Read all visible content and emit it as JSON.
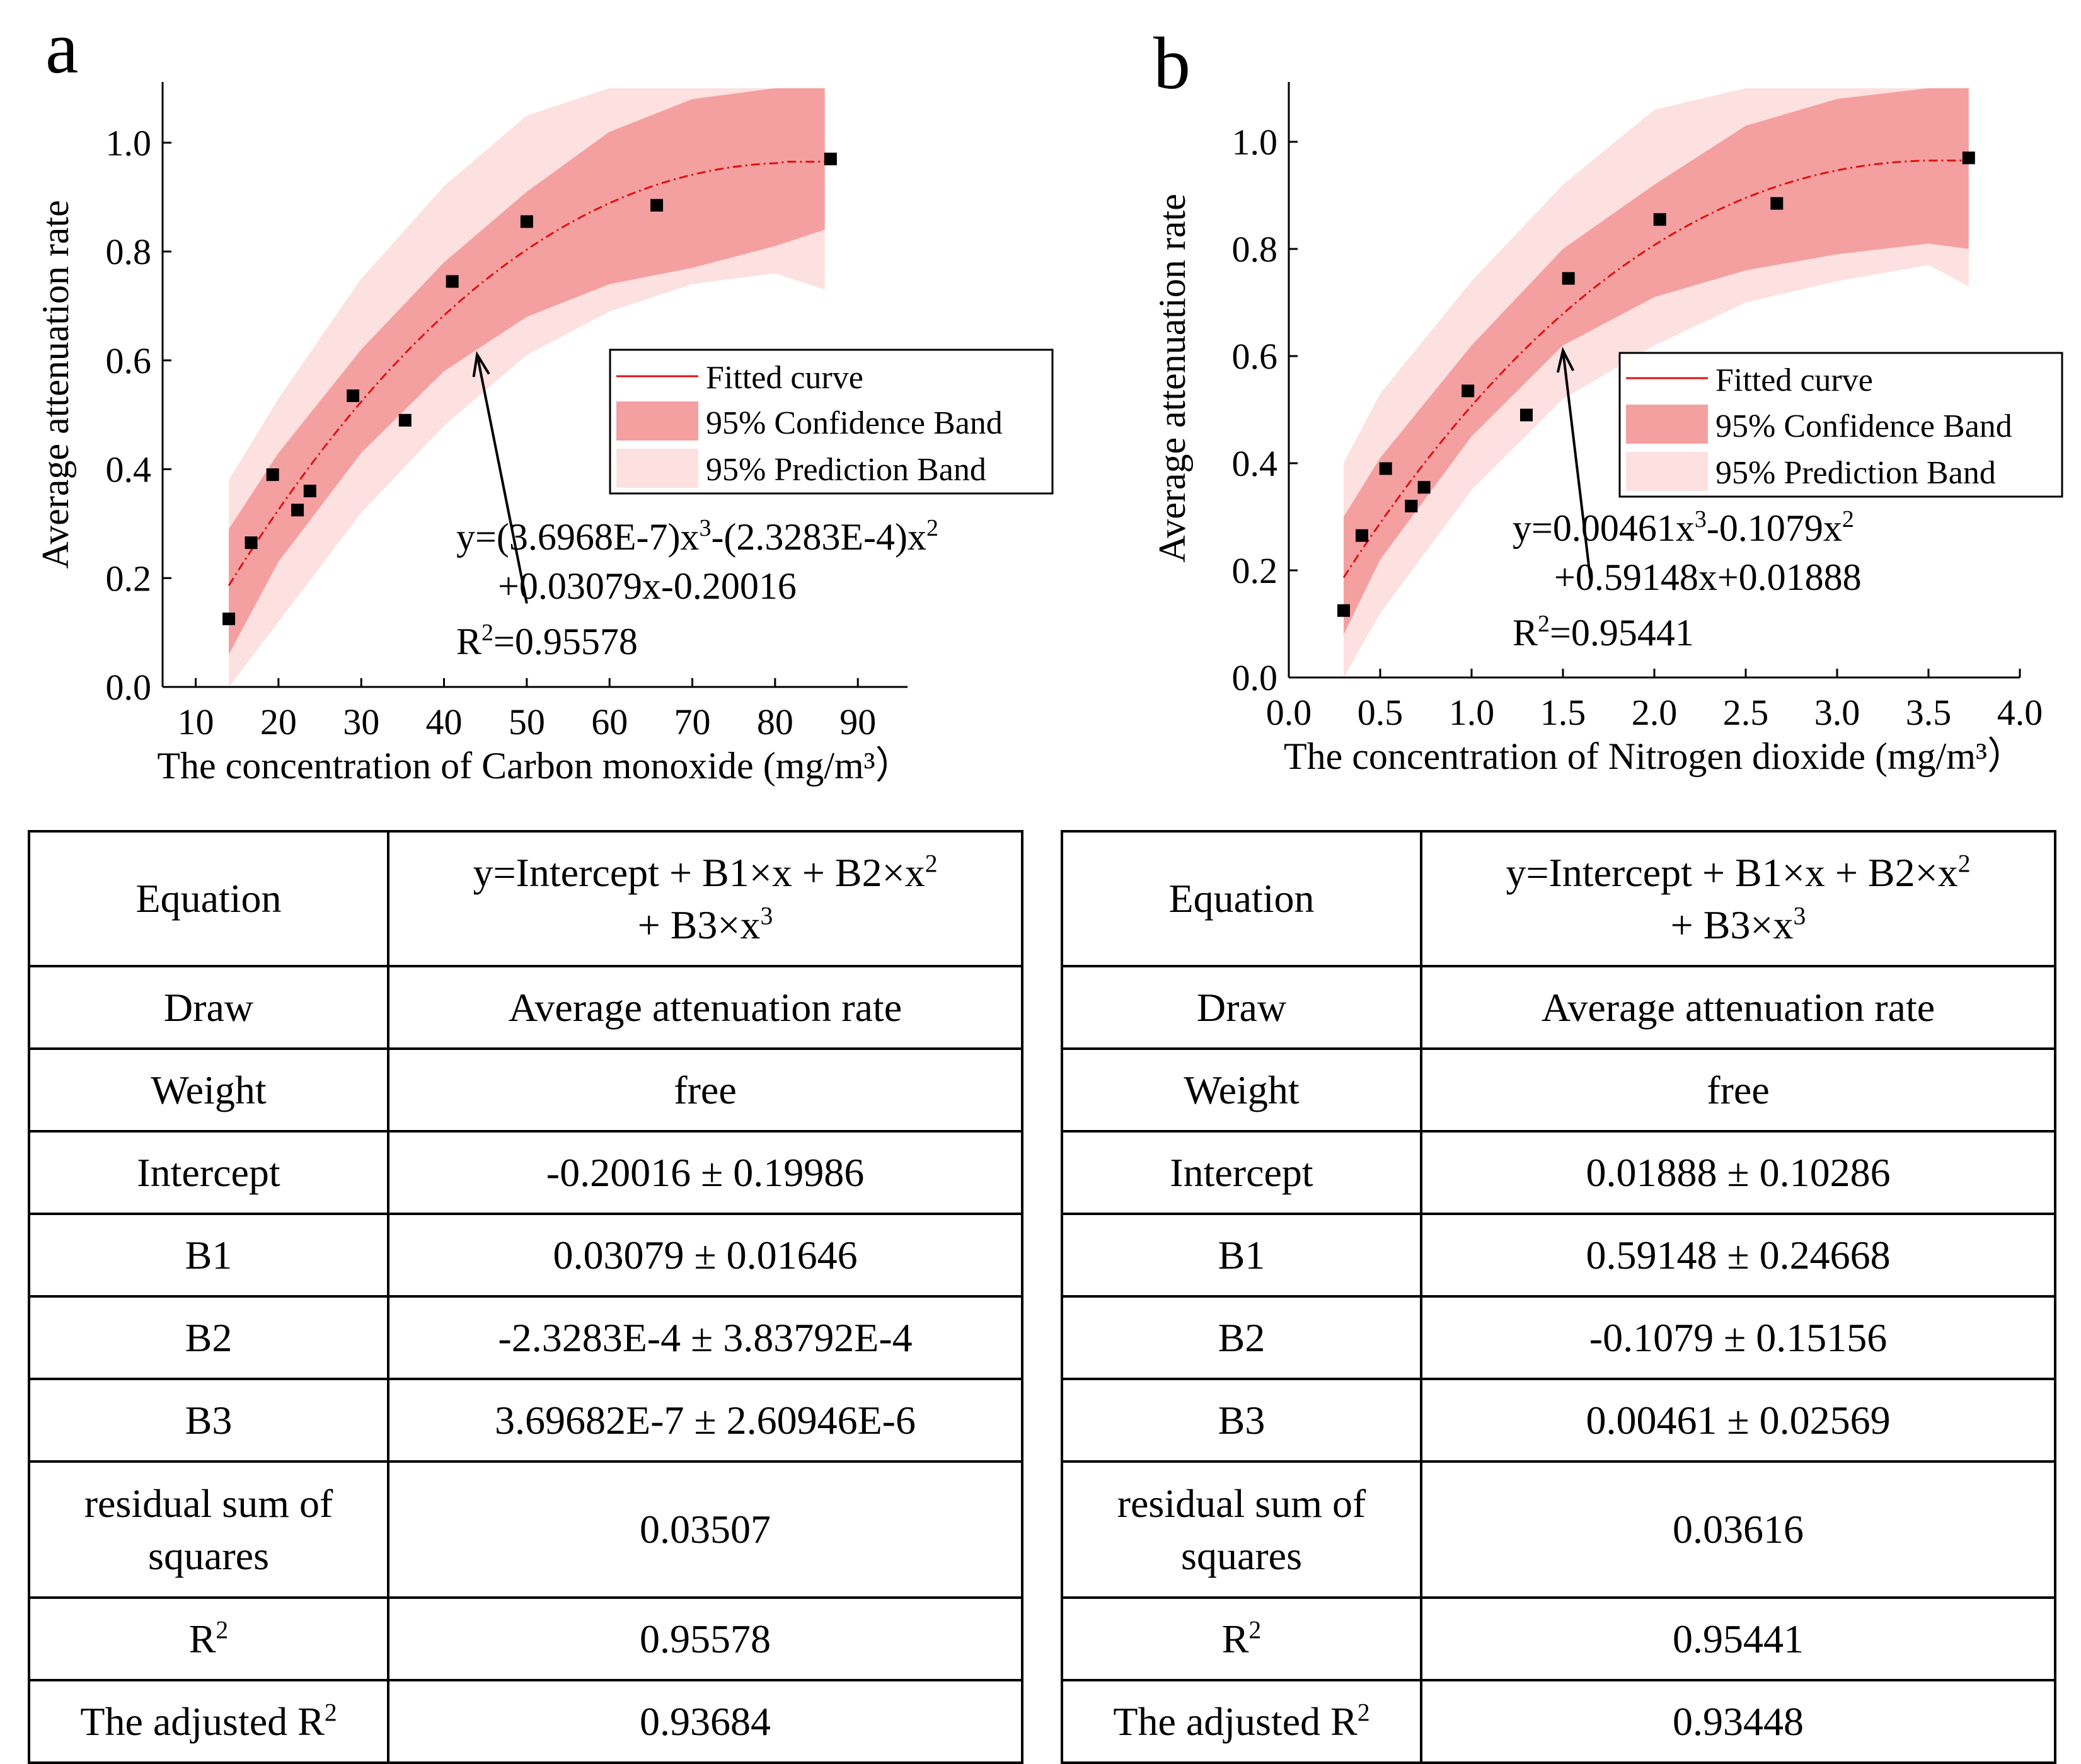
{
  "panels": [
    {
      "letter": "a",
      "equation_line1": "y=(3.6968E-7)x",
      "equation_line1b": "-(2.3283E-4)x",
      "equation_line2": "+0.03079x-0.20016",
      "equation_r2": "=0.95578",
      "legend": {
        "fit": "Fitted curve",
        "conf": "95% Confidence Band",
        "pred": "95% Prediction Band"
      },
      "table": {
        "rows": [
          {
            "label": "Equation",
            "value": "y=Intercept + B1×x + B2×x",
            "value2": "+ B3×x"
          },
          {
            "label": "Draw",
            "value": "Average attenuation rate"
          },
          {
            "label": "Weight",
            "value": "free"
          },
          {
            "label": "Intercept",
            "value": "-0.20016 ± 0.19986"
          },
          {
            "label": "B1",
            "value": "0.03079 ± 0.01646"
          },
          {
            "label": "B2",
            "value": "-2.3283E-4 ± 3.83792E-4"
          },
          {
            "label": "B3",
            "value": "3.69682E-7 ± 2.60946E-6"
          },
          {
            "label": "residual sum of squares",
            "value": "0.03507"
          },
          {
            "label": "R",
            "value": "0.95578"
          },
          {
            "label": "The adjusted R",
            "value": "0.93684"
          }
        ]
      }
    },
    {
      "letter": "b",
      "equation_line1": "y=0.00461x",
      "equation_line1b": "-0.1079x",
      "equation_line2": "+0.59148x+0.01888",
      "equation_r2": "=0.95441",
      "legend": {
        "fit": "Fitted curve",
        "conf": "95% Confidence Band",
        "pred": "95% Prediction Band"
      },
      "table": {
        "rows": [
          {
            "label": "Equation",
            "value": "y=Intercept + B1×x + B2×x",
            "value2": "+ B3×x"
          },
          {
            "label": "Draw",
            "value": "Average attenuation rate"
          },
          {
            "label": "Weight",
            "value": "free"
          },
          {
            "label": "Intercept",
            "value": "0.01888 ± 0.10286"
          },
          {
            "label": "B1",
            "value": "0.59148 ± 0.24668"
          },
          {
            "label": "B2",
            "value": "-0.1079 ± 0.15156"
          },
          {
            "label": "B3",
            "value": "0.00461 ± 0.02569"
          },
          {
            "label": "residual sum of squares",
            "value": "0.03616"
          },
          {
            "label": "R",
            "value": "0.95441"
          },
          {
            "label": "The adjusted R",
            "value": "0.93448"
          }
        ]
      }
    }
  ],
  "chart_data": [
    {
      "type": "scatter",
      "title": "a",
      "xlabel": "The concentration of Carbon monoxide (mg/m³）",
      "ylabel": "Average attenuation rate",
      "xlim": [
        6,
        96
      ],
      "ylim": [
        0,
        1.1
      ],
      "xticks": [
        10,
        20,
        30,
        40,
        50,
        60,
        70,
        80,
        90
      ],
      "yticks": [
        0.0,
        0.2,
        0.4,
        0.6,
        0.8,
        1.0
      ],
      "xtick_labels": [
        "10",
        "20",
        "30",
        "40",
        "50",
        "60",
        "70",
        "80",
        "90"
      ],
      "ytick_labels": [
        "0.0",
        "0.2",
        "0.4",
        "0.6",
        "0.8",
        "1.0"
      ],
      "series": [
        {
          "name": "Data",
          "x": [
            14.0,
            16.7,
            19.3,
            22.3,
            23.8,
            29.0,
            35.3,
            41.0,
            50.0,
            65.7,
            86.7
          ],
          "y": [
            0.125,
            0.265,
            0.39,
            0.325,
            0.36,
            0.535,
            0.49,
            0.745,
            0.855,
            0.885,
            0.97
          ]
        }
      ],
      "fit": {
        "type": "polynomial",
        "coefficients": [
          -0.20016,
          0.03079,
          -0.00023283,
          3.6968e-07
        ],
        "x_range": [
          14,
          86
        ],
        "flat_end": [
          81,
          86,
          0.965
        ]
      },
      "confidence_band": {
        "x": [
          14,
          20,
          30,
          40,
          50,
          60,
          70,
          80,
          86
        ],
        "lower": [
          0.06,
          0.23,
          0.43,
          0.58,
          0.68,
          0.74,
          0.77,
          0.81,
          0.84
        ],
        "upper": [
          0.29,
          0.43,
          0.62,
          0.78,
          0.91,
          1.02,
          1.08,
          1.1,
          1.1
        ]
      },
      "prediction_band": {
        "x": [
          14,
          20,
          30,
          40,
          50,
          60,
          70,
          80,
          86
        ],
        "lower": [
          -0.05,
          0.12,
          0.32,
          0.48,
          0.61,
          0.69,
          0.74,
          0.76,
          0.73
        ],
        "upper": [
          0.38,
          0.53,
          0.75,
          0.92,
          1.05,
          1.1,
          1.1,
          1.1,
          1.1
        ]
      },
      "annotation_arrow": {
        "from": [
          50,
          0.385
        ],
        "to": [
          44,
          0.62
        ]
      },
      "legend": [
        "Fitted curve",
        "95% Confidence Band",
        "95% Prediction Band"
      ],
      "legend_position": "center-right"
    },
    {
      "type": "scatter",
      "title": "b",
      "xlabel": "The concentration of Nitrogen dioxide (mg/m³）",
      "ylabel": "Average attenuation rate",
      "xlim": [
        0,
        4.0
      ],
      "ylim": [
        0,
        1.1
      ],
      "xticks": [
        0.0,
        0.5,
        1.0,
        1.5,
        2.0,
        2.5,
        3.0,
        3.5,
        4.0
      ],
      "yticks": [
        0.0,
        0.2,
        0.4,
        0.6,
        0.8,
        1.0
      ],
      "xtick_labels": [
        "0.0",
        "0.5",
        "1.0",
        "1.5",
        "2.0",
        "2.5",
        "3.0",
        "3.5",
        "4.0"
      ],
      "ytick_labels": [
        "0.0",
        "0.2",
        "0.4",
        "0.6",
        "0.8",
        "1.0"
      ],
      "series": [
        {
          "name": "Data",
          "x": [
            0.3,
            0.4,
            0.53,
            0.67,
            0.74,
            0.98,
            1.3,
            1.53,
            2.03,
            2.67,
            3.72
          ],
          "y": [
            0.125,
            0.265,
            0.39,
            0.32,
            0.355,
            0.535,
            0.49,
            0.745,
            0.855,
            0.885,
            0.97
          ]
        }
      ],
      "fit": {
        "type": "polynomial",
        "coefficients": [
          0.01888,
          0.59148,
          -0.1079,
          0.00461
        ],
        "x_range": [
          0.3,
          3.72
        ],
        "flat_end": [
          3.5,
          3.72,
          0.965
        ]
      },
      "confidence_band": {
        "x": [
          0.3,
          0.5,
          1.0,
          1.5,
          2.0,
          2.5,
          3.0,
          3.5,
          3.72
        ],
        "lower": [
          0.08,
          0.22,
          0.45,
          0.62,
          0.71,
          0.76,
          0.79,
          0.81,
          0.8
        ],
        "upper": [
          0.3,
          0.41,
          0.62,
          0.8,
          0.92,
          1.03,
          1.08,
          1.1,
          1.1
        ]
      },
      "prediction_band": {
        "x": [
          0.3,
          0.5,
          1.0,
          1.5,
          2.0,
          2.5,
          3.0,
          3.5,
          3.72
        ],
        "lower": [
          -0.02,
          0.12,
          0.35,
          0.52,
          0.62,
          0.7,
          0.74,
          0.77,
          0.73
        ],
        "upper": [
          0.4,
          0.53,
          0.74,
          0.92,
          1.06,
          1.1,
          1.1,
          1.1,
          1.1
        ]
      },
      "annotation_arrow": {
        "from": [
          1.65,
          0.42
        ],
        "to": [
          1.5,
          0.62
        ]
      },
      "legend": [
        "Fitted curve",
        "95% Confidence Band",
        "95% Prediction Band"
      ],
      "legend_position": "center-right"
    }
  ],
  "colors": {
    "confidence": "#f4a0a0",
    "prediction": "#fde0e0",
    "fit": "#e01010",
    "marker": "#000000"
  }
}
